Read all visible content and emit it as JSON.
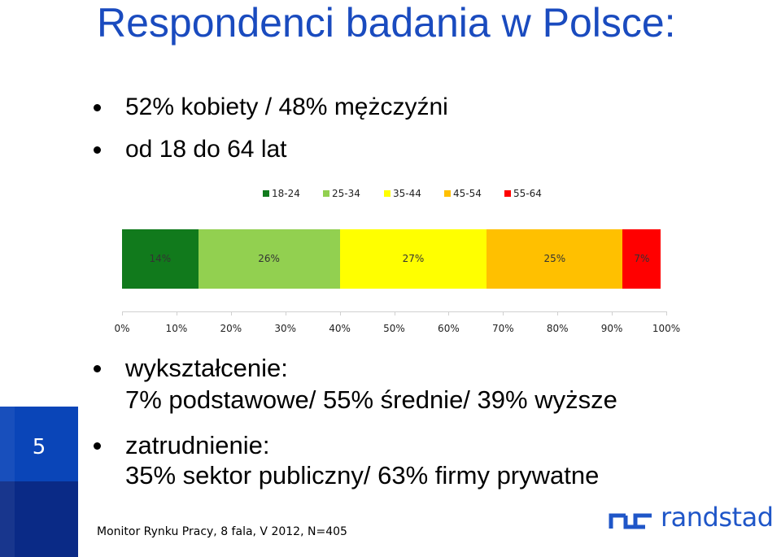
{
  "slide": {
    "title": "Respondenci badania w Polsce:",
    "bullets_top": [
      "52% kobiety / 48% mężczyźni",
      "od 18 do 64 lat"
    ],
    "bullets_bottom": [
      {
        "line1": "wykształcenie:",
        "line2": "7% podstawowe/ 55% średnie/ 39% wyższe"
      },
      {
        "line1": "zatrudnienie:",
        "line2": "35% sektor publiczny/ 63% firmy prywatne"
      }
    ],
    "page_number": "5",
    "source": "Monitor Rynku Pracy, 8 fala, V 2012, N=405",
    "logo": {
      "text": "randstad",
      "name": "randstad-logo"
    }
  },
  "chart_data": {
    "type": "bar",
    "orientation": "horizontal-stacked-100",
    "series": [
      {
        "name": "18-24",
        "values": [
          14
        ],
        "label": "14%",
        "color": "#117a1c"
      },
      {
        "name": "25-34",
        "values": [
          26
        ],
        "label": "26%",
        "color": "#92d050"
      },
      {
        "name": "35-44",
        "values": [
          27
        ],
        "label": "27%",
        "color": "#ffff00"
      },
      {
        "name": "45-54",
        "values": [
          25
        ],
        "label": "25%",
        "color": "#ffc000"
      },
      {
        "name": "55-64",
        "values": [
          7
        ],
        "label": "7%",
        "color": "#ff0000"
      }
    ],
    "xlim": [
      0,
      100
    ],
    "xticks": [
      "0%",
      "10%",
      "20%",
      "30%",
      "40%",
      "50%",
      "60%",
      "70%",
      "80%",
      "90%",
      "100%"
    ],
    "legend_position": "top",
    "grid": false
  }
}
